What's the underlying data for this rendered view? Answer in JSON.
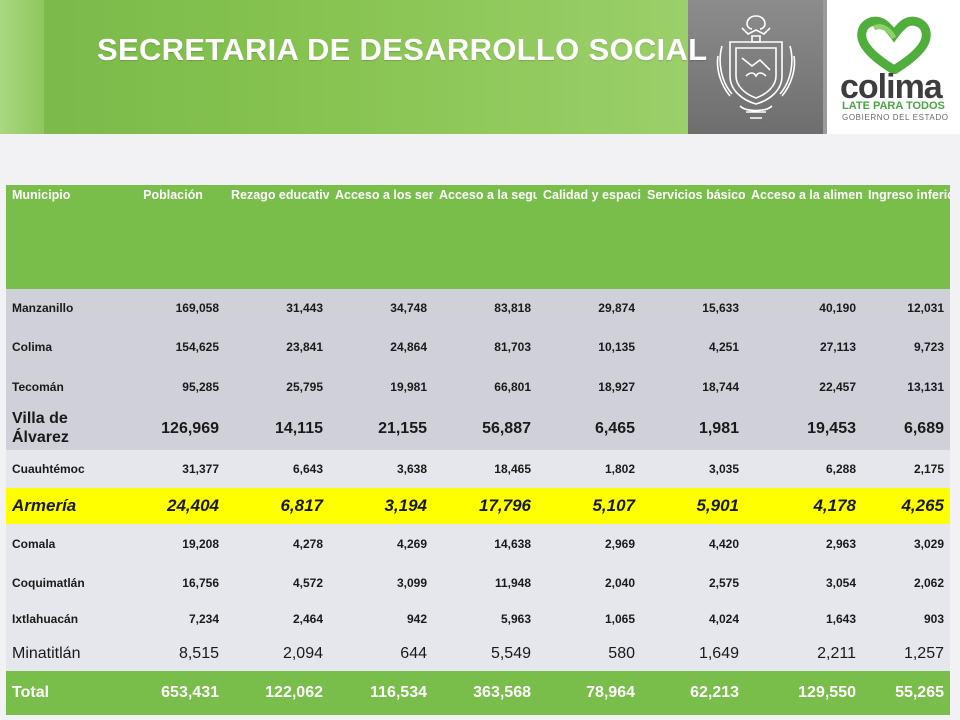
{
  "header": {
    "title": "SECRETARIA DE DESARROLLO SOCIAL",
    "logo_word": "colima",
    "logo_tagline": "LATE PARA TODOS",
    "logo_subtitle": "GOBIERNO DEL ESTADO"
  },
  "colors": {
    "green": "#79bd4a",
    "grey_band": "#7a7a7a",
    "row_dark": "#cfd0d8",
    "row_light": "#e6e7ec",
    "highlight": "#ffff00"
  },
  "table": {
    "columns": [
      "Municipio",
      "Población",
      "Rezago educativo",
      "Acceso a los servicios de salud",
      "Acceso a la seguridad social",
      "Calidad y espacios de la vivienda",
      "Servicios básicos en la vivienda",
      "Acceso a la alimentación",
      "Ingreso inferior a la Línea de Bienestar Mínimo"
    ],
    "rows": [
      [
        "Manzanillo",
        "169,058",
        "31,443",
        "34,748",
        "83,818",
        "29,874",
        "15,633",
        "40,190",
        "12,031"
      ],
      [
        "Colima",
        "154,625",
        "23,841",
        "24,864",
        "81,703",
        "10,135",
        "4,251",
        "27,113",
        "9,723"
      ],
      [
        "Tecomán",
        "95,285",
        "25,795",
        "19,981",
        "66,801",
        "18,927",
        "18,744",
        "22,457",
        "13,131"
      ],
      [
        "Villa de Álvarez",
        "126,969",
        "14,115",
        "21,155",
        "56,887",
        "6,465",
        "1,981",
        "19,453",
        "6,689"
      ],
      [
        "Cuauhtémoc",
        "31,377",
        "6,643",
        "3,638",
        "18,465",
        "1,802",
        "3,035",
        "6,288",
        "2,175"
      ],
      [
        "Armería",
        "24,404",
        "6,817",
        "3,194",
        "17,796",
        "5,107",
        "5,901",
        "4,178",
        "4,265"
      ],
      [
        "Comala",
        "19,208",
        "4,278",
        "4,269",
        "14,638",
        "2,969",
        "4,420",
        "2,963",
        "3,029"
      ],
      [
        "Coquimatlán",
        "16,756",
        "4,572",
        "3,099",
        "11,948",
        "2,040",
        "2,575",
        "3,054",
        "2,062"
      ],
      [
        "Ixtlahuacán",
        "7,234",
        "2,464",
        "942",
        "5,963",
        "1,065",
        "4,024",
        "1,643",
        "903"
      ],
      [
        "Minatitlán",
        "8,515",
        "2,094",
        "644",
        "5,549",
        "580",
        "1,649",
        "2,211",
        "1,257"
      ]
    ],
    "total": [
      "Total",
      "653,431",
      "122,062",
      "116,534",
      "363,568",
      "78,964",
      "62,213",
      "129,550",
      "55,265"
    ]
  }
}
